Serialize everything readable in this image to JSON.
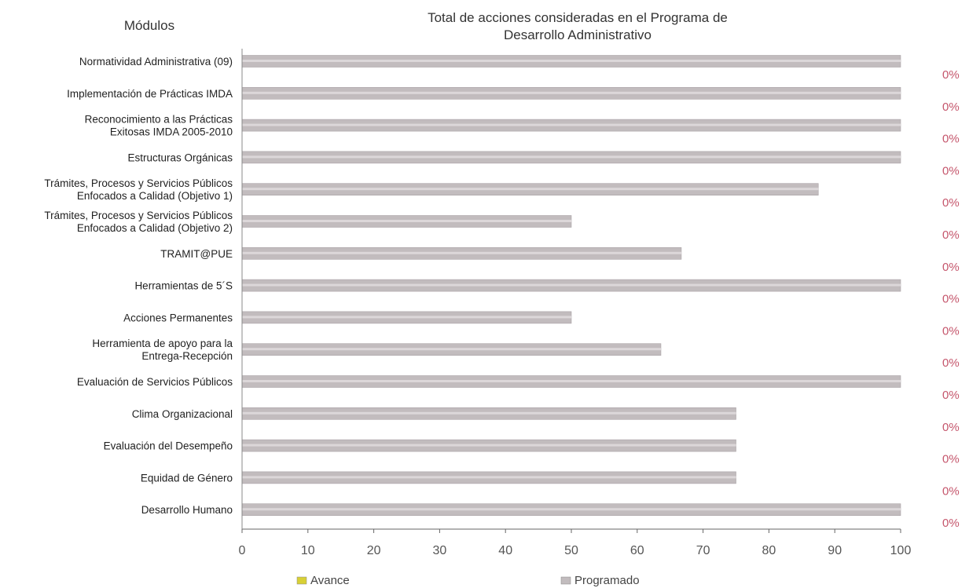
{
  "chart_data": {
    "type": "bar",
    "modules_heading": "Módulos",
    "title_lines": [
      "Total de acciones consideradas en el Programa de",
      "Desarrollo Administrativo"
    ],
    "categories": [
      [
        "Normatividad Administrativa (09)"
      ],
      [
        "Implementación de Prácticas IMDA"
      ],
      [
        "Reconocimiento a las Prácticas",
        "Exitosas IMDA 2005-2010"
      ],
      [
        "Estructuras Orgánicas"
      ],
      [
        "Trámites, Procesos y Servicios Públicos",
        "Enfocados a Calidad (Objetivo 1)"
      ],
      [
        "Trámites, Procesos y Servicios Públicos",
        "Enfocados a Calidad (Objetivo 2)"
      ],
      [
        "TRAMIT@PUE"
      ],
      [
        "Herramientas de 5´S"
      ],
      [
        "Acciones Permanentes"
      ],
      [
        "Herramienta de apoyo para la",
        "Entrega-Recepción"
      ],
      [
        "Evaluación de Servicios Públicos"
      ],
      [
        "Clima Organizacional"
      ],
      [
        "Evaluación del Desempeño"
      ],
      [
        "Equidad de Género"
      ],
      [
        "Desarrollo Humano"
      ]
    ],
    "series": [
      {
        "name": "Avance",
        "color": "#d8d035",
        "values": [
          0,
          0,
          0,
          0,
          0,
          0,
          0,
          0,
          0,
          0,
          0,
          0,
          0,
          0,
          0
        ]
      },
      {
        "name": "Programado",
        "color": "#c2bcbe",
        "values": [
          100,
          100,
          100,
          100,
          87.5,
          50,
          66.7,
          100,
          50,
          63.6,
          100,
          75,
          75,
          75,
          100
        ]
      }
    ],
    "percent_labels": [
      "0%",
      "0%",
      "0%",
      "0%",
      "0%",
      "0%",
      "0%",
      "0%",
      "0%",
      "0%",
      "0%",
      "0%",
      "0%",
      "0%",
      "0%"
    ],
    "percent_color": "#c5566c",
    "xlim": [
      0,
      100
    ],
    "xticks": [
      "0",
      "10",
      "20",
      "30",
      "40",
      "50",
      "60",
      "70",
      "80",
      "90",
      "100"
    ],
    "grid": false,
    "legend_position": "bottom"
  }
}
